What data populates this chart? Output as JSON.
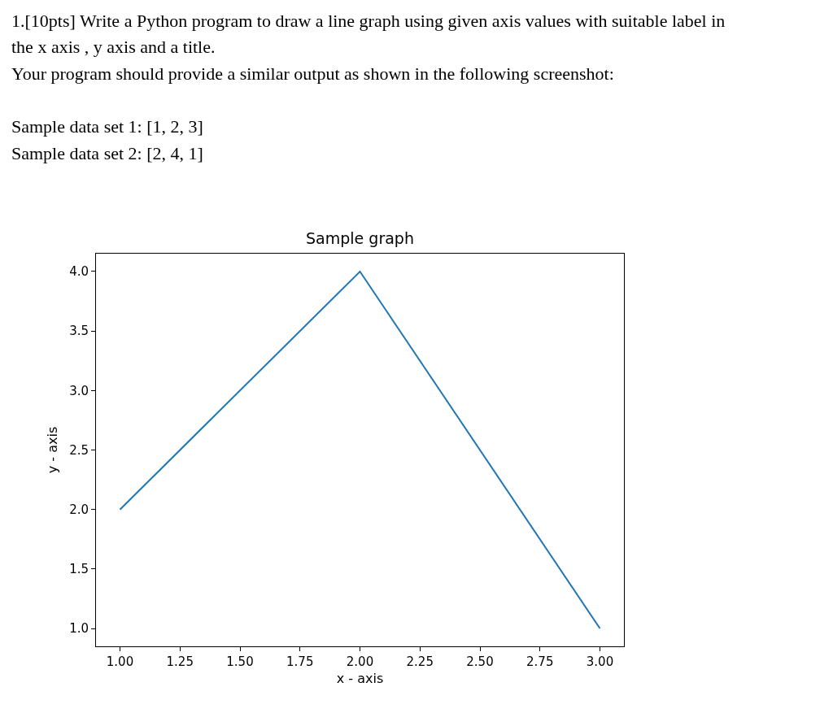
{
  "chart_data": {
    "type": "line",
    "title": "Sample graph",
    "xlabel": "x - axis",
    "ylabel": "y - axis",
    "x": [
      1,
      2,
      3
    ],
    "series": [
      {
        "color": "#1f77b4",
        "values": [
          2,
          4,
          1
        ]
      }
    ],
    "xlim": [
      0.9,
      3.1
    ],
    "ylim": [
      0.85,
      4.15
    ],
    "xticks": [
      {
        "value": 1,
        "label": "1.00"
      },
      {
        "value": 1.25,
        "label": "1.25"
      },
      {
        "value": 1.5,
        "label": "1.50"
      },
      {
        "value": 1.75,
        "label": "1.75"
      },
      {
        "value": 2,
        "label": "2.00"
      },
      {
        "value": 2.25,
        "label": "2.25"
      },
      {
        "value": 2.5,
        "label": "2.50"
      },
      {
        "value": 2.75,
        "label": "2.75"
      },
      {
        "value": 3,
        "label": "3.00"
      }
    ],
    "yticks": [
      {
        "value": 1,
        "label": "1.0"
      },
      {
        "value": 1.5,
        "label": "1.5"
      },
      {
        "value": 2,
        "label": "2.0"
      },
      {
        "value": 2.5,
        "label": "2.5"
      },
      {
        "value": 3,
        "label": "3.0"
      },
      {
        "value": 3.5,
        "label": "3.5"
      },
      {
        "value": 4,
        "label": "4.0"
      }
    ],
    "legend": false,
    "marker": "none",
    "line_style": "solid",
    "annotations": [
      "1.[10pts] Write a Python program to draw a line graph using given axis values with suitable label in",
      "the x axis , y axis and a title.",
      "Your program should provide a similar output as shown in the following screenshot:",
      "Sample data set 1: [1, 2, 3]",
      "Sample data set 2: [2, 4, 1]"
    ]
  }
}
